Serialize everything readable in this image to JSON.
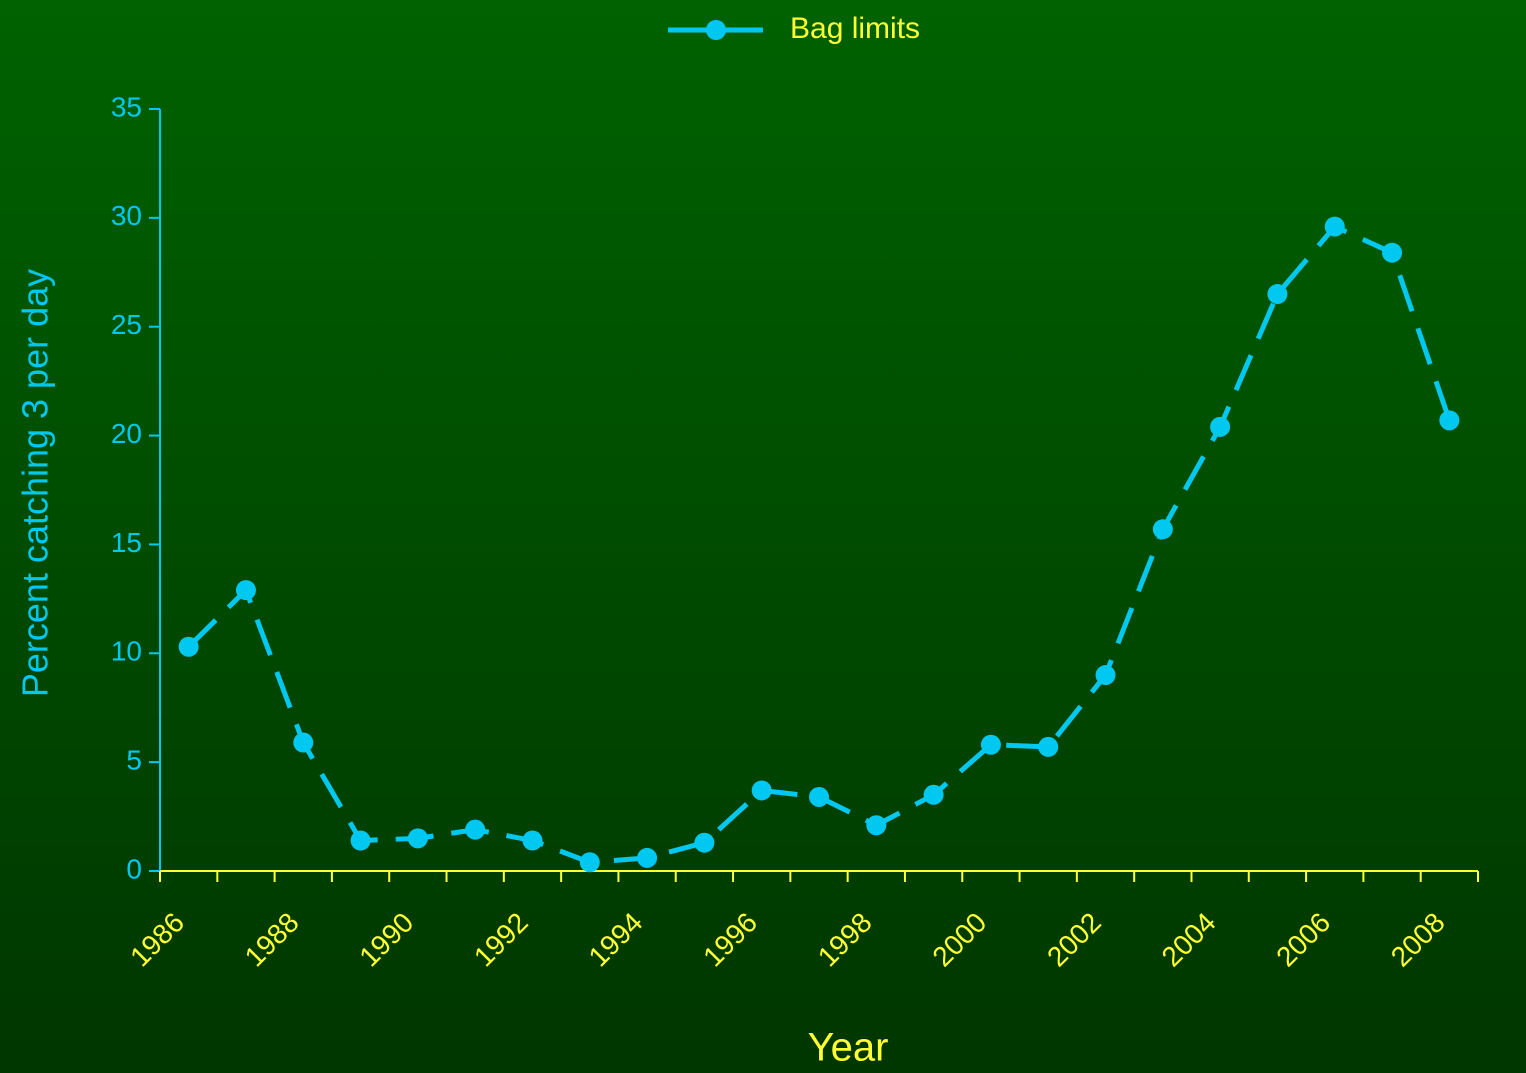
{
  "chart_data": {
    "type": "line",
    "xlabel": "Year",
    "ylabel": "Percent catching 3 per day",
    "categories": [
      "1986",
      null,
      "1988",
      null,
      "1990",
      null,
      "1992",
      null,
      "1994",
      null,
      "1996",
      null,
      "1998",
      null,
      "2000",
      null,
      "2002",
      null,
      "2004",
      null,
      "2006",
      null,
      "2008"
    ],
    "series": [
      {
        "name": "Bag limits",
        "color": "#00c8f0",
        "values": [
          10.3,
          12.9,
          5.9,
          1.4,
          1.5,
          1.9,
          1.4,
          0.4,
          0.6,
          1.3,
          3.7,
          3.4,
          2.1,
          3.5,
          5.8,
          5.7,
          9.0,
          15.7,
          20.4,
          26.5,
          29.6,
          28.4,
          20.7
        ]
      }
    ],
    "ylim": [
      0,
      35
    ],
    "yticks": [
      0,
      5,
      10,
      15,
      20,
      25,
      30,
      35
    ],
    "legend": "top"
  }
}
